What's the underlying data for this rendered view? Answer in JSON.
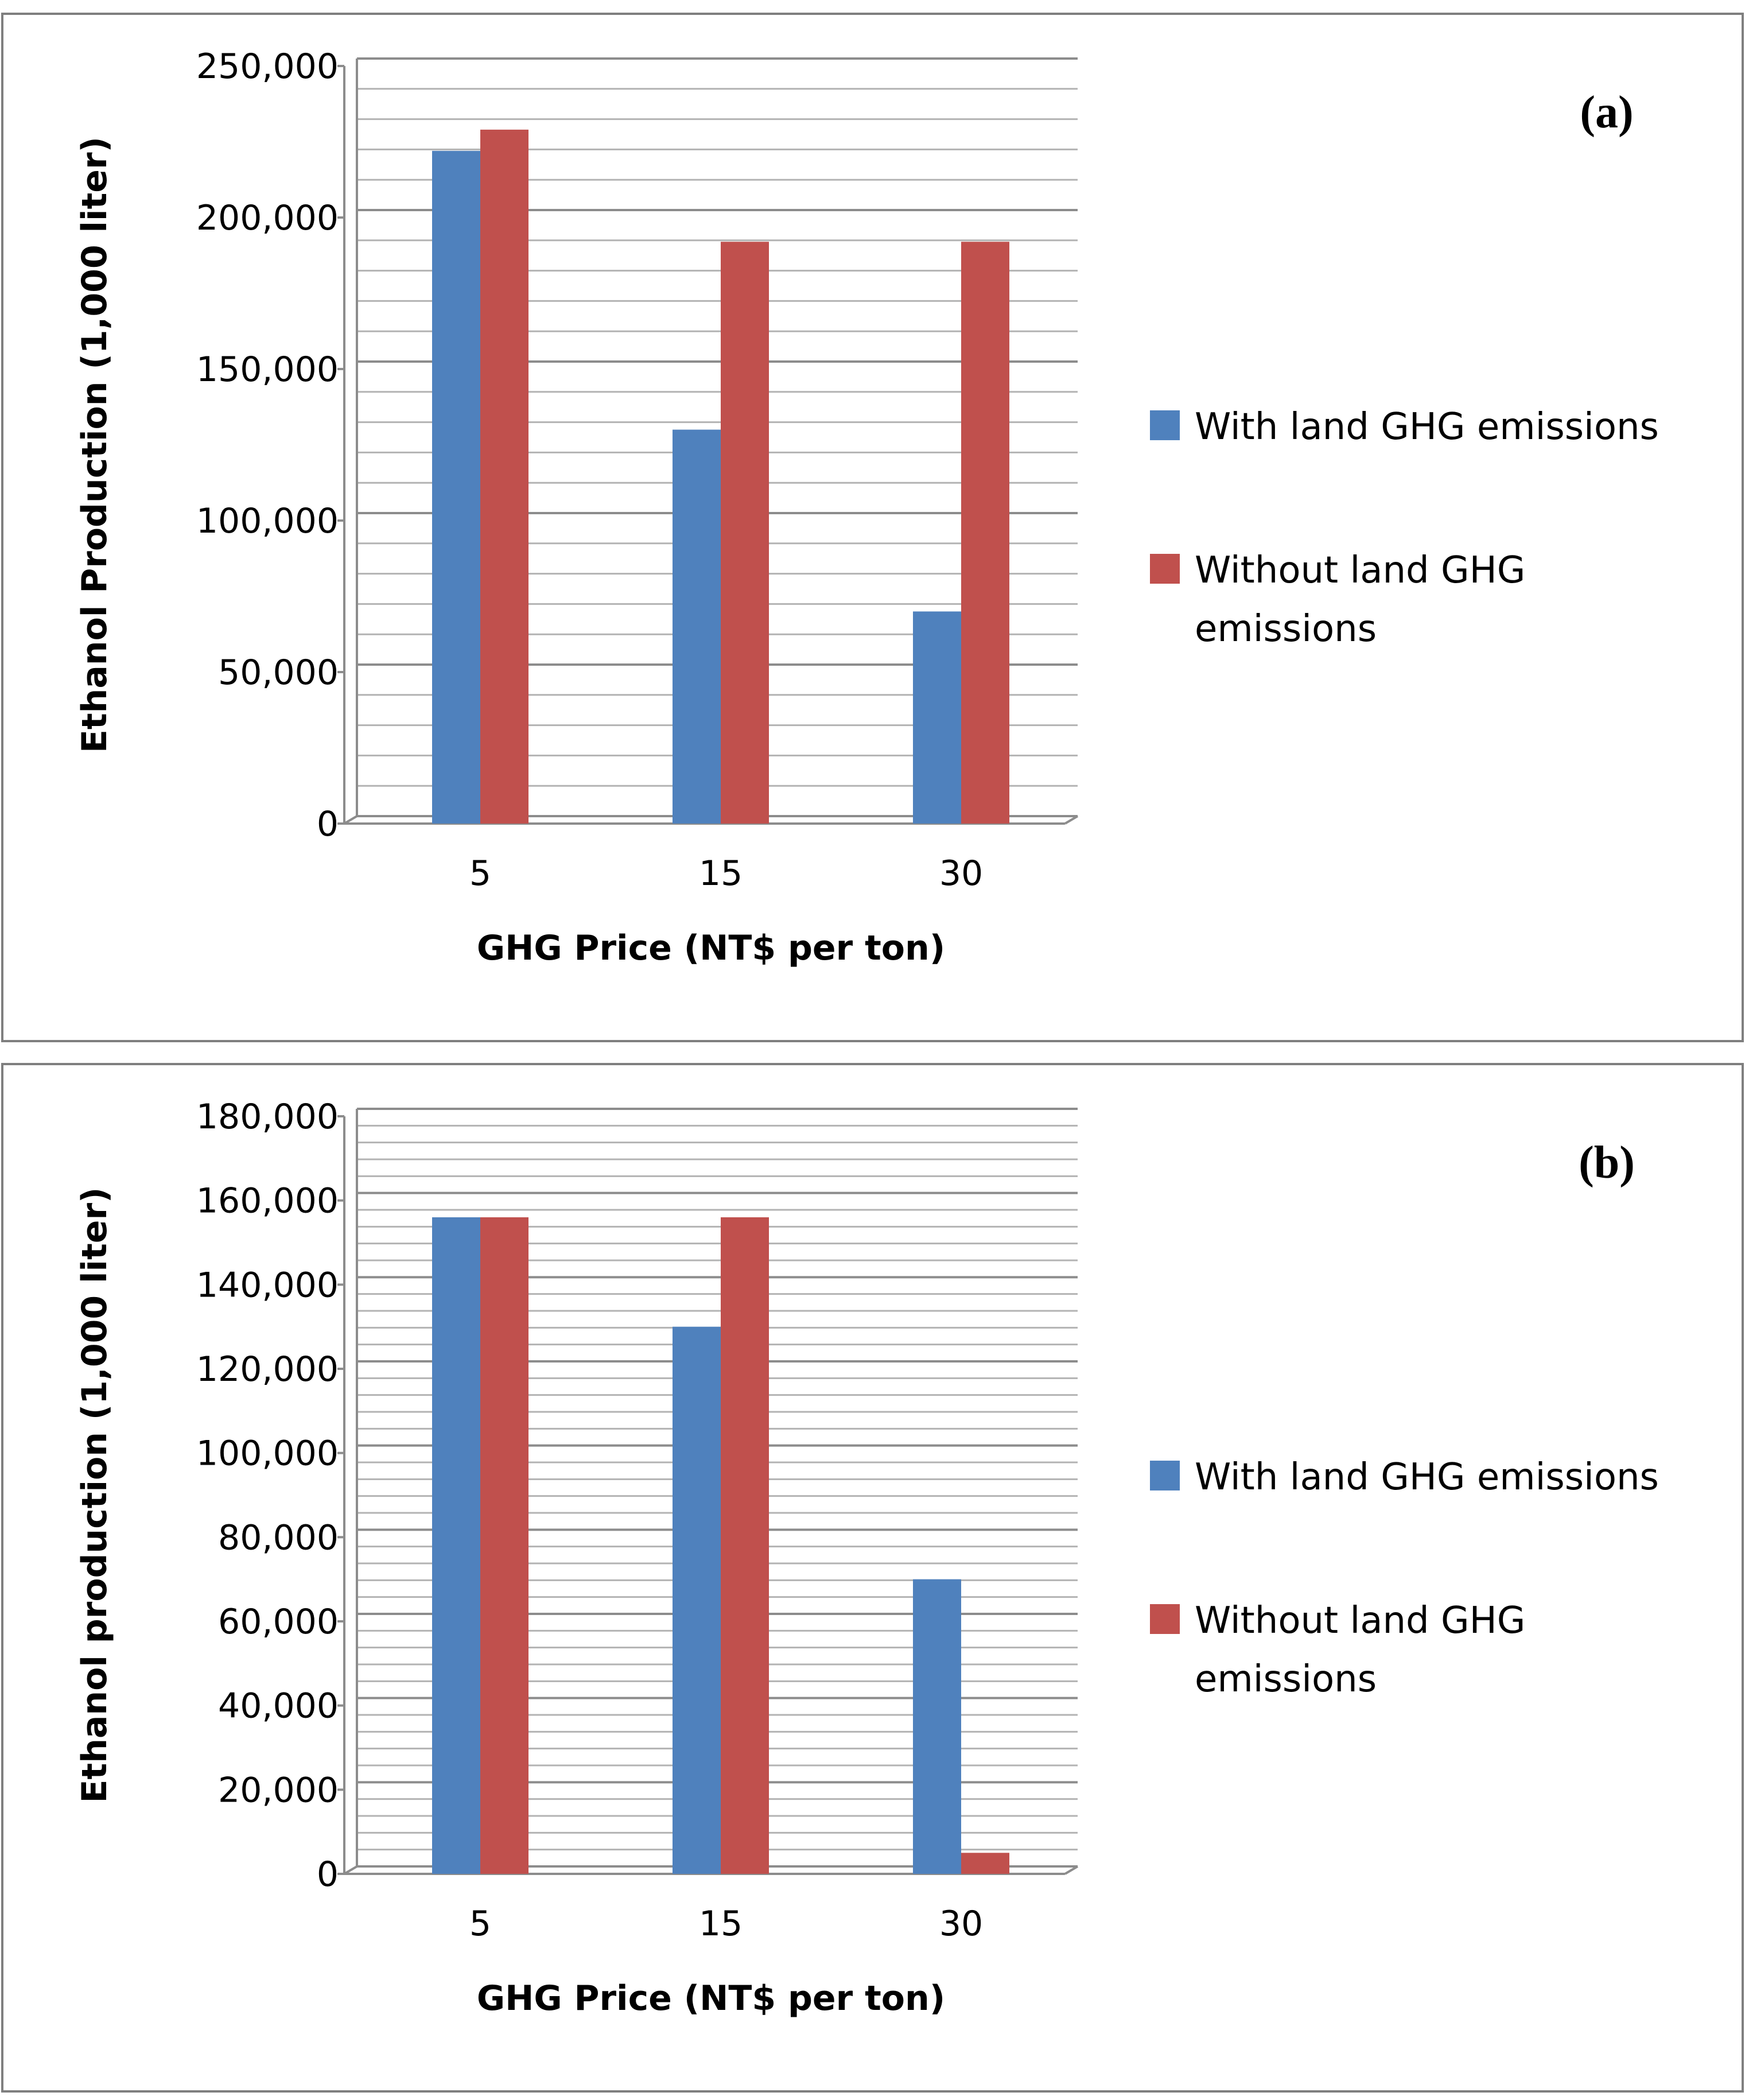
{
  "chart_data": [
    {
      "type": "bar",
      "panel_label": "(a)",
      "title": "",
      "xlabel": "GHG Price (NT$ per ton)",
      "ylabel": "Ethanol Production (1,000 liter)",
      "categories": [
        "5",
        "15",
        "30"
      ],
      "series": [
        {
          "name": "With land GHG emissions",
          "values": [
            222000,
            130000,
            70000
          ],
          "color": "#4f81bd"
        },
        {
          "name": "Without land GHG emissions",
          "values": [
            229000,
            192000,
            192000
          ],
          "color": "#c0504d"
        }
      ],
      "ylim": [
        0,
        250000
      ],
      "major_step": 50000,
      "minor_step": 10000,
      "ytick_labels": [
        "0",
        "50,000",
        "100,000",
        "150,000",
        "200,000",
        "250,000"
      ],
      "legend_lines": [
        [
          "With land GHG emissions"
        ],
        [
          "Without land GHG",
          "emissions"
        ]
      ],
      "grid": true,
      "legend_position": "right"
    },
    {
      "type": "bar",
      "panel_label": "(b)",
      "title": "",
      "xlabel": "GHG Price (NT$ per ton)",
      "ylabel": "Ethanol production (1,000 liter)",
      "categories": [
        "5",
        "15",
        "30"
      ],
      "series": [
        {
          "name": "With land GHG emissions",
          "values": [
            156000,
            130000,
            70000
          ],
          "color": "#4f81bd"
        },
        {
          "name": "Without land GHG emissions",
          "values": [
            156000,
            156000,
            5000
          ],
          "color": "#c0504d"
        }
      ],
      "ylim": [
        0,
        180000
      ],
      "major_step": 20000,
      "minor_step": 4000,
      "ytick_labels": [
        "0",
        "20,000",
        "40,000",
        "60,000",
        "80,000",
        "100,000",
        "120,000",
        "140,000",
        "160,000",
        "180,000"
      ],
      "legend_lines": [
        [
          "With land GHG emissions"
        ],
        [
          "Without land GHG",
          "emissions"
        ]
      ],
      "grid": true,
      "legend_position": "right"
    }
  ]
}
